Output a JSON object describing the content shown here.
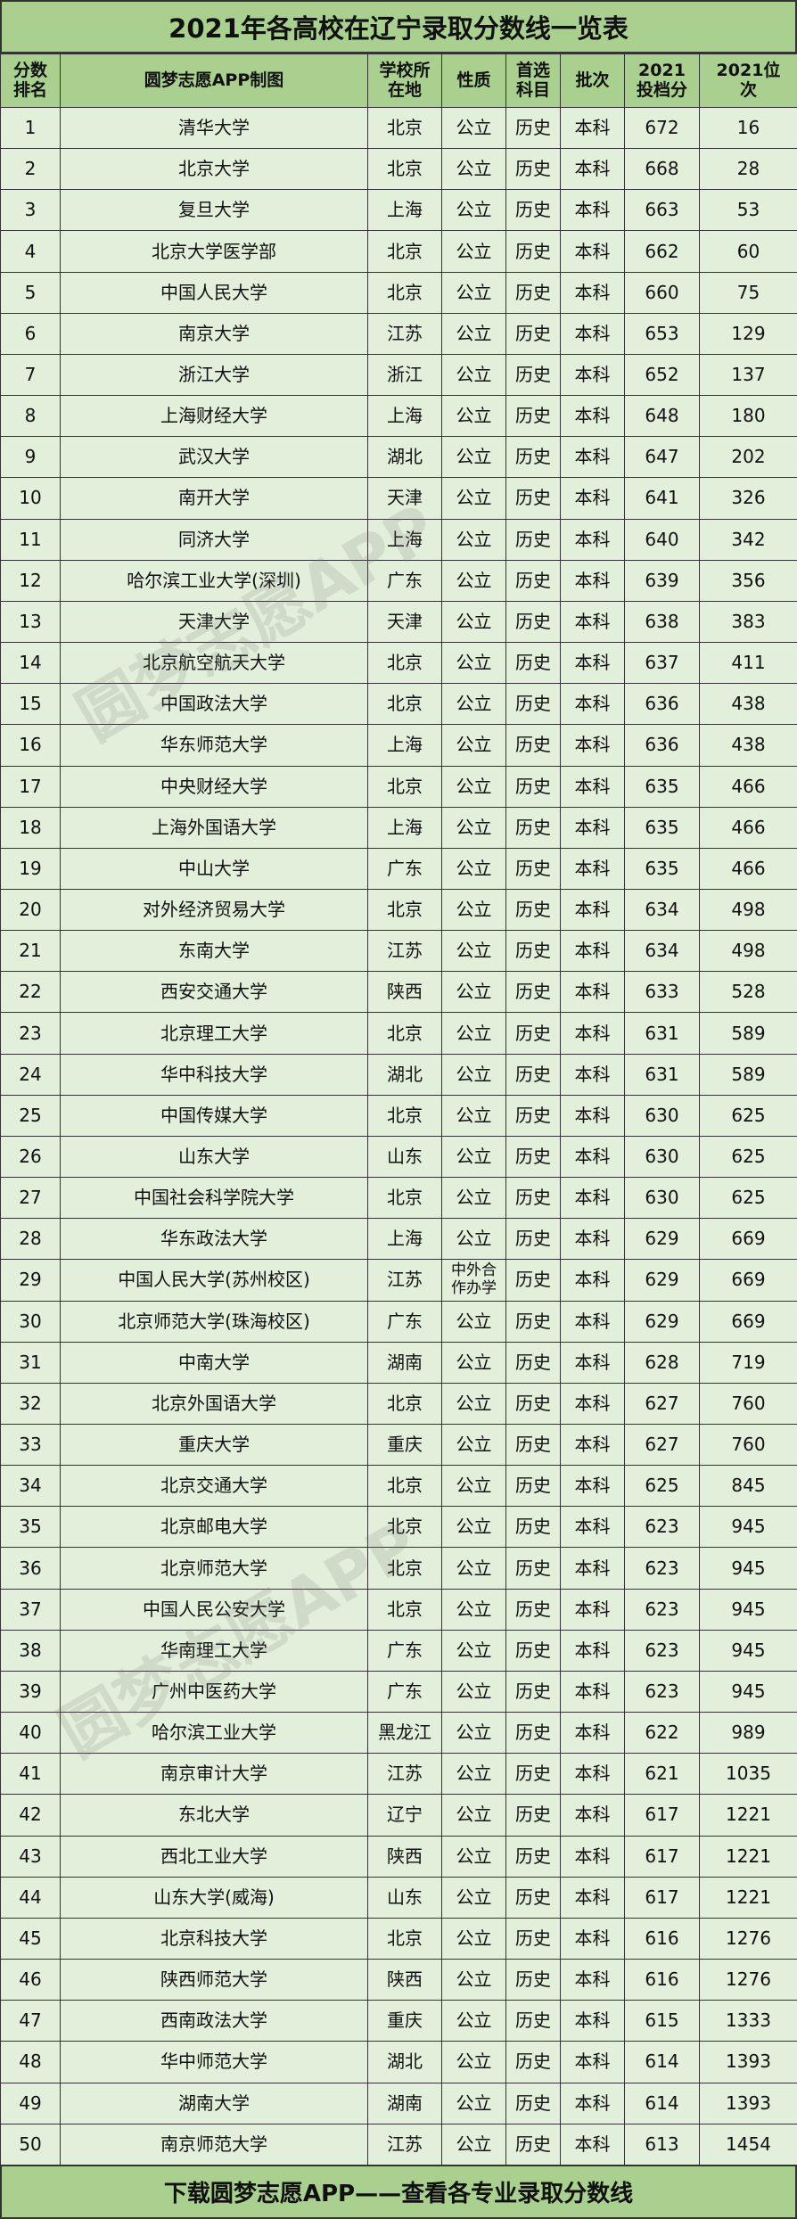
{
  "title": "2021年各高校在辽宁录取分数线一览表",
  "headers": [
    "分数排名",
    "圆梦志愿APP制图",
    "学校所在地",
    "性质",
    "首选科目",
    "批次",
    "2021投档分",
    "2021位次"
  ],
  "rows": [
    [
      "1",
      "清华大学",
      "北京",
      "公立",
      "历史",
      "本科",
      "672",
      "16"
    ],
    [
      "2",
      "北京大学",
      "北京",
      "公立",
      "历史",
      "本科",
      "668",
      "28"
    ],
    [
      "3",
      "复旦大学",
      "上海",
      "公立",
      "历史",
      "本科",
      "663",
      "53"
    ],
    [
      "4",
      "北京大学医学部",
      "北京",
      "公立",
      "历史",
      "本科",
      "662",
      "60"
    ],
    [
      "5",
      "中国人民大学",
      "北京",
      "公立",
      "历史",
      "本科",
      "660",
      "75"
    ],
    [
      "6",
      "南京大学",
      "江苏",
      "公立",
      "历史",
      "本科",
      "653",
      "129"
    ],
    [
      "7",
      "浙江大学",
      "浙江",
      "公立",
      "历史",
      "本科",
      "652",
      "137"
    ],
    [
      "8",
      "上海财经大学",
      "上海",
      "公立",
      "历史",
      "本科",
      "648",
      "180"
    ],
    [
      "9",
      "武汉大学",
      "湖北",
      "公立",
      "历史",
      "本科",
      "647",
      "202"
    ],
    [
      "10",
      "南开大学",
      "天津",
      "公立",
      "历史",
      "本科",
      "641",
      "326"
    ],
    [
      "11",
      "同济大学",
      "上海",
      "公立",
      "历史",
      "本科",
      "640",
      "342"
    ],
    [
      "12",
      "哈尔滨工业大学(深圳)",
      "广东",
      "公立",
      "历史",
      "本科",
      "639",
      "356"
    ],
    [
      "13",
      "天津大学",
      "天津",
      "公立",
      "历史",
      "本科",
      "638",
      "383"
    ],
    [
      "14",
      "北京航空航天大学",
      "北京",
      "公立",
      "历史",
      "本科",
      "637",
      "411"
    ],
    [
      "15",
      "中国政法大学",
      "北京",
      "公立",
      "历史",
      "本科",
      "636",
      "438"
    ],
    [
      "16",
      "华东师范大学",
      "上海",
      "公立",
      "历史",
      "本科",
      "636",
      "438"
    ],
    [
      "17",
      "中央财经大学",
      "北京",
      "公立",
      "历史",
      "本科",
      "635",
      "466"
    ],
    [
      "18",
      "上海外国语大学",
      "上海",
      "公立",
      "历史",
      "本科",
      "635",
      "466"
    ],
    [
      "19",
      "中山大学",
      "广东",
      "公立",
      "历史",
      "本科",
      "635",
      "466"
    ],
    [
      "20",
      "对外经济贸易大学",
      "北京",
      "公立",
      "历史",
      "本科",
      "634",
      "498"
    ],
    [
      "21",
      "东南大学",
      "江苏",
      "公立",
      "历史",
      "本科",
      "634",
      "498"
    ],
    [
      "22",
      "西安交通大学",
      "陕西",
      "公立",
      "历史",
      "本科",
      "633",
      "528"
    ],
    [
      "23",
      "北京理工大学",
      "北京",
      "公立",
      "历史",
      "本科",
      "631",
      "589"
    ],
    [
      "24",
      "华中科技大学",
      "湖北",
      "公立",
      "历史",
      "本科",
      "631",
      "589"
    ],
    [
      "25",
      "中国传媒大学",
      "北京",
      "公立",
      "历史",
      "本科",
      "630",
      "625"
    ],
    [
      "26",
      "山东大学",
      "山东",
      "公立",
      "历史",
      "本科",
      "630",
      "625"
    ],
    [
      "27",
      "中国社会科学院大学",
      "北京",
      "公立",
      "历史",
      "本科",
      "630",
      "625"
    ],
    [
      "28",
      "华东政法大学",
      "上海",
      "公立",
      "历史",
      "本科",
      "629",
      "669"
    ],
    [
      "29",
      "中国人民大学(苏州校区)",
      "江苏",
      "中外合作办学",
      "历史",
      "本科",
      "629",
      "669"
    ],
    [
      "30",
      "北京师范大学(珠海校区)",
      "广东",
      "公立",
      "历史",
      "本科",
      "629",
      "669"
    ],
    [
      "31",
      "中南大学",
      "湖南",
      "公立",
      "历史",
      "本科",
      "628",
      "719"
    ],
    [
      "32",
      "北京外国语大学",
      "北京",
      "公立",
      "历史",
      "本科",
      "627",
      "760"
    ],
    [
      "33",
      "重庆大学",
      "重庆",
      "公立",
      "历史",
      "本科",
      "627",
      "760"
    ],
    [
      "34",
      "北京交通大学",
      "北京",
      "公立",
      "历史",
      "本科",
      "625",
      "845"
    ],
    [
      "35",
      "北京邮电大学",
      "北京",
      "公立",
      "历史",
      "本科",
      "623",
      "945"
    ],
    [
      "36",
      "北京师范大学",
      "北京",
      "公立",
      "历史",
      "本科",
      "623",
      "945"
    ],
    [
      "37",
      "中国人民公安大学",
      "北京",
      "公立",
      "历史",
      "本科",
      "623",
      "945"
    ],
    [
      "38",
      "华南理工大学",
      "广东",
      "公立",
      "历史",
      "本科",
      "623",
      "945"
    ],
    [
      "39",
      "广州中医药大学",
      "广东",
      "公立",
      "历史",
      "本科",
      "623",
      "945"
    ],
    [
      "40",
      "哈尔滨工业大学",
      "黑龙江",
      "公立",
      "历史",
      "本科",
      "622",
      "989"
    ],
    [
      "41",
      "南京审计大学",
      "江苏",
      "公立",
      "历史",
      "本科",
      "621",
      "1035"
    ],
    [
      "42",
      "东北大学",
      "辽宁",
      "公立",
      "历史",
      "本科",
      "617",
      "1221"
    ],
    [
      "43",
      "西北工业大学",
      "陕西",
      "公立",
      "历史",
      "本科",
      "617",
      "1221"
    ],
    [
      "44",
      "山东大学(威海)",
      "山东",
      "公立",
      "历史",
      "本科",
      "617",
      "1221"
    ],
    [
      "45",
      "北京科技大学",
      "北京",
      "公立",
      "历史",
      "本科",
      "616",
      "1276"
    ],
    [
      "46",
      "陕西师范大学",
      "陕西",
      "公立",
      "历史",
      "本科",
      "616",
      "1276"
    ],
    [
      "47",
      "西南政法大学",
      "重庆",
      "公立",
      "历史",
      "本科",
      "615",
      "1333"
    ],
    [
      "48",
      "华中师范大学",
      "湖北",
      "公立",
      "历史",
      "本科",
      "614",
      "1393"
    ],
    [
      "49",
      "湖南大学",
      "湖南",
      "公立",
      "历史",
      "本科",
      "614",
      "1393"
    ],
    [
      "50",
      "南京师范大学",
      "江苏",
      "公立",
      "历史",
      "本科",
      "613",
      "1454"
    ]
  ],
  "footer": "下载圆梦志愿APP——查看各专业录取分数线",
  "watermark": "圆梦志愿APP",
  "colors": {
    "header_bg": "#a9d08e",
    "row_bg": "#e2efda"
  }
}
